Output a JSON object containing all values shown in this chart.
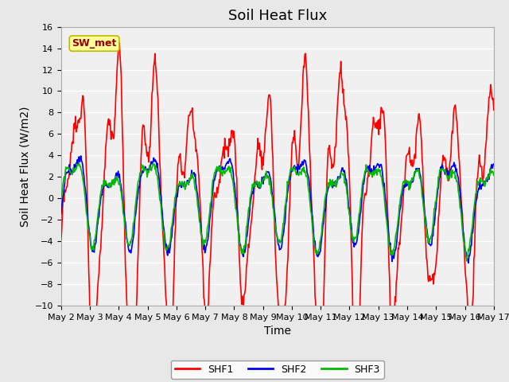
{
  "title": "Soil Heat Flux",
  "xlabel": "Time",
  "ylabel": "Soil Heat Flux (W/m2)",
  "ylim": [
    -10,
    16
  ],
  "yticks": [
    -10,
    -8,
    -6,
    -4,
    -2,
    0,
    2,
    4,
    6,
    8,
    10,
    12,
    14,
    16
  ],
  "series": {
    "SHF1": {
      "color": "#FF0000",
      "linewidth": 1.2
    },
    "SHF2": {
      "color": "#0000EE",
      "linewidth": 1.2
    },
    "SHF3": {
      "color": "#00BB00",
      "linewidth": 1.2
    }
  },
  "annotation_text": "SW_met",
  "annotation_facecolor": "#FFFF99",
  "annotation_edgecolor": "#BBBB00",
  "annotation_textcolor": "#990000",
  "figure_facecolor": "#E8E8E8",
  "axes_facecolor": "#F0F0F0",
  "grid_color": "#FFFFFF",
  "tick_labelsize": 8,
  "axis_labelsize": 10,
  "title_fontsize": 13,
  "legend_fontsize": 9
}
